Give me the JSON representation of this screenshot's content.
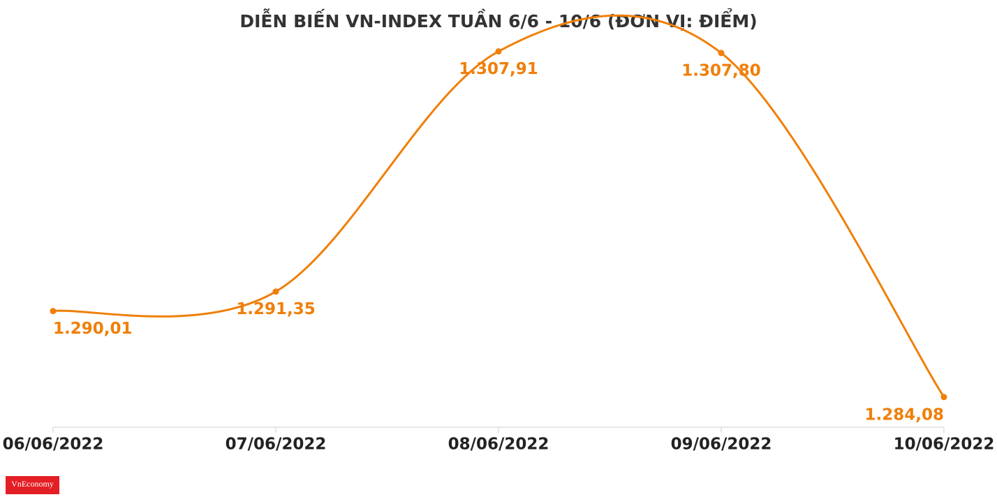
{
  "chart_data": {
    "type": "line",
    "title": "DIỄN BIẾN VN-INDEX TUẦN 6/6 - 10/6 (ĐƠN VỊ: ĐIỂM)",
    "categories": [
      "06/06/2022",
      "07/06/2022",
      "08/06/2022",
      "09/06/2022",
      "10/06/2022"
    ],
    "series": [
      {
        "name": "VN-Index",
        "color": "#f07f09",
        "values": [
          1290.01,
          1291.35,
          1307.91,
          1307.8,
          1284.08
        ],
        "value_labels": [
          "1.290,01",
          "1.291,35",
          "1.307,91",
          "1.307,80",
          "1.284,08"
        ]
      }
    ],
    "ylim": [
      1282,
      1309
    ],
    "grid": false
  },
  "logo": "VnEconomy"
}
